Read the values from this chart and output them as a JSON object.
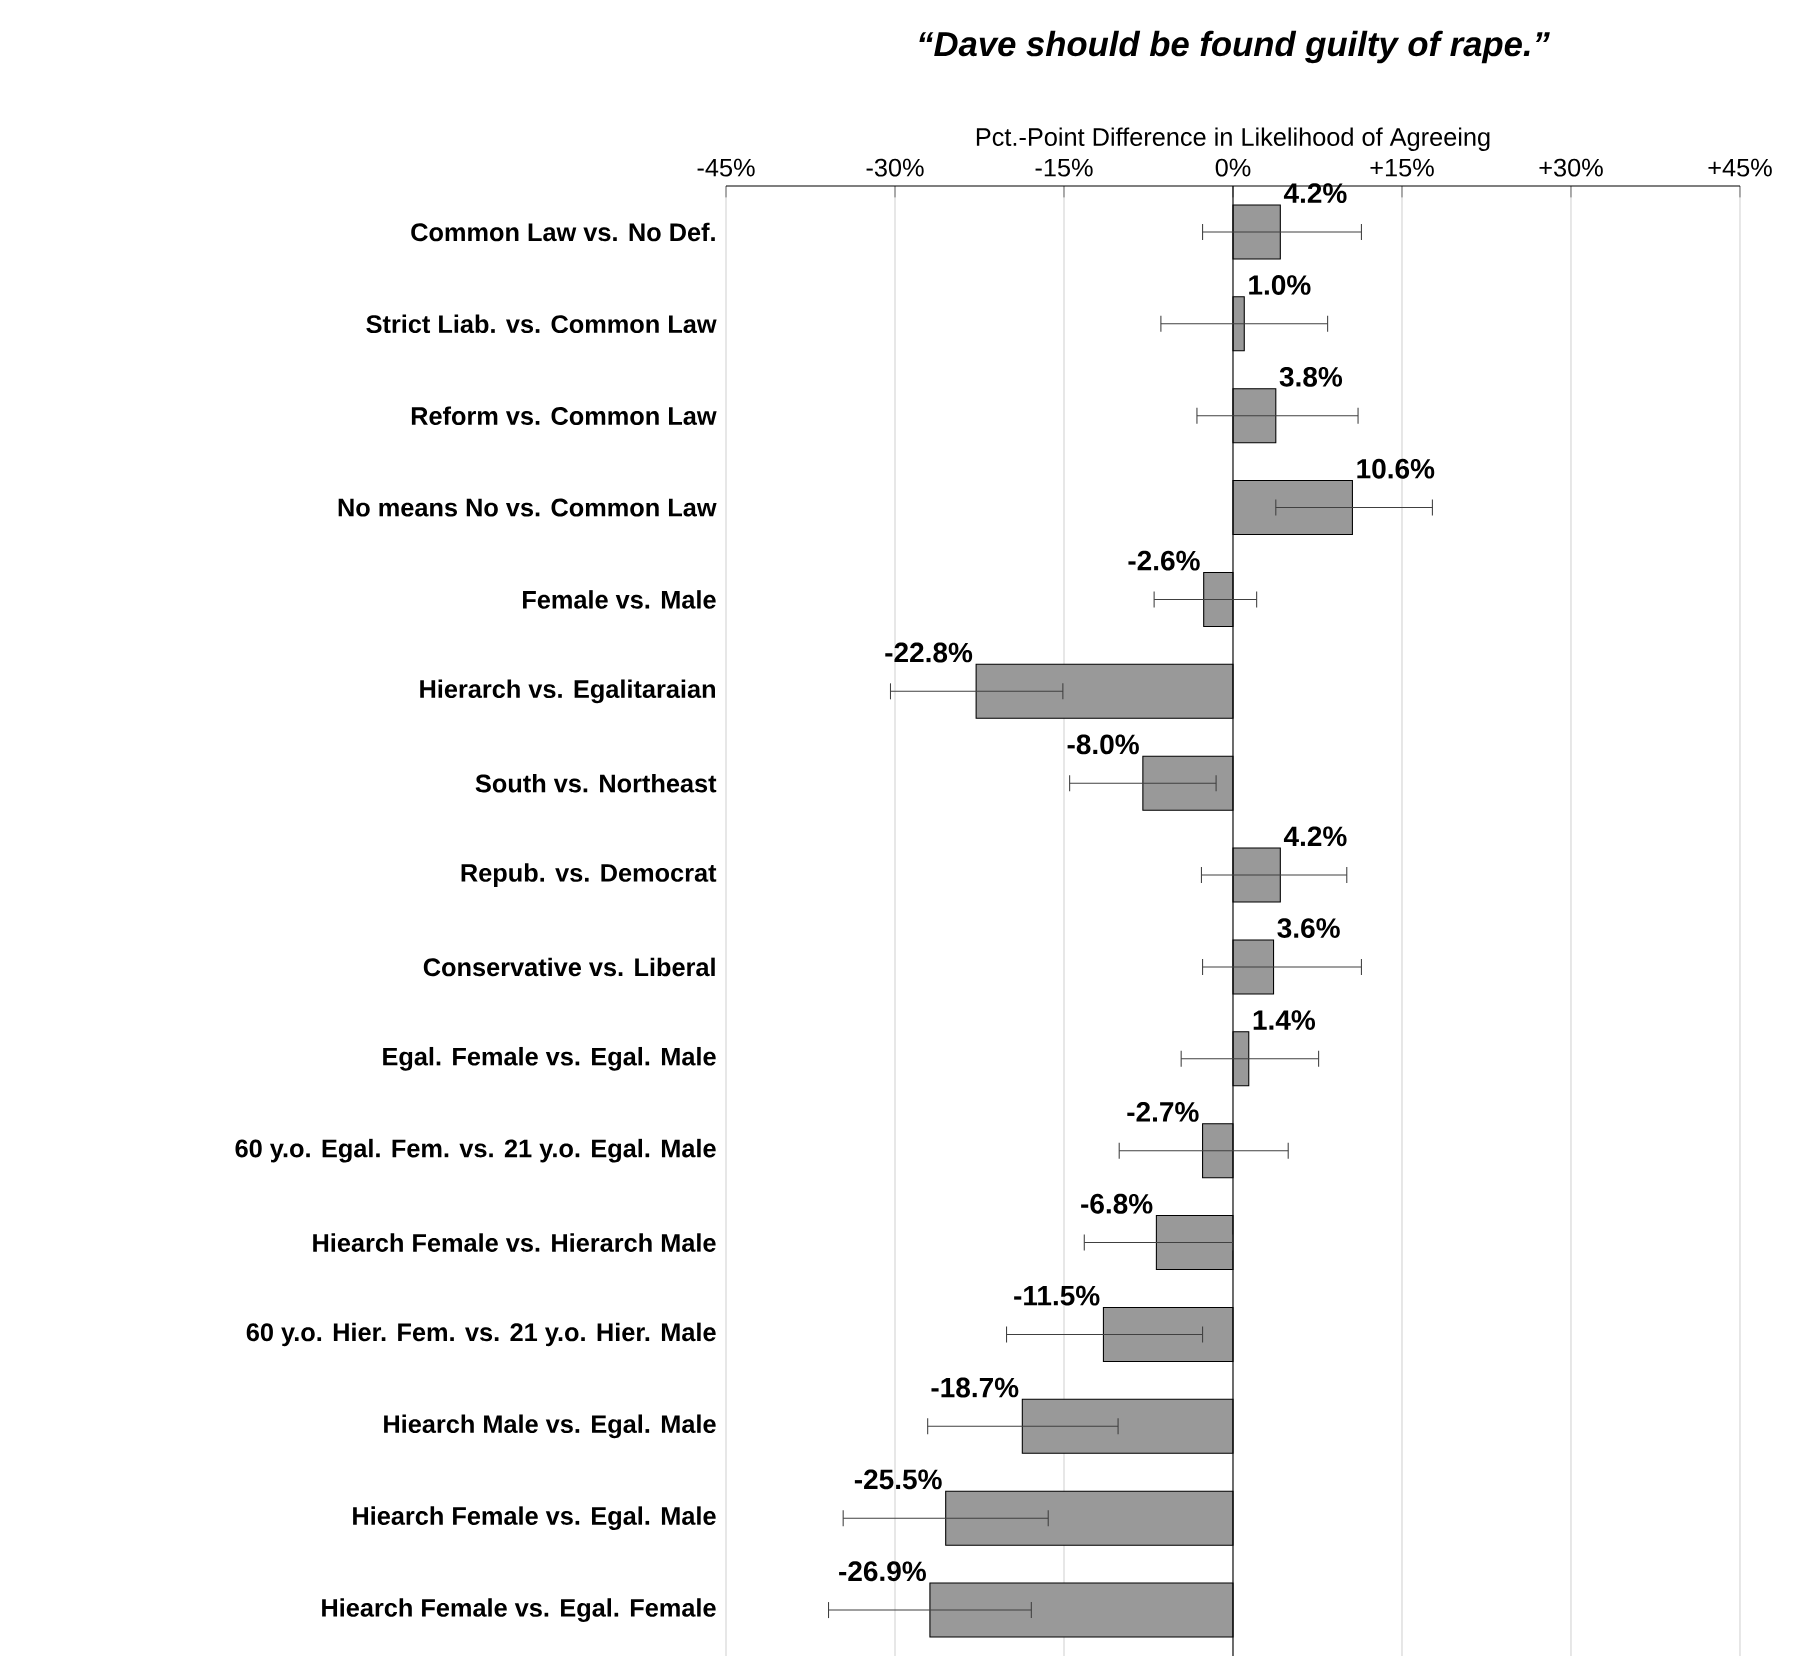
{
  "chart_data": {
    "type": "bar",
    "orientation": "horizontal",
    "title": "“Dave should be found guilty of rape.”",
    "xlabel": "Pct.-Point Difference in Likelihood of Agreeing",
    "categories": [
      "Common Law vs. No Def.",
      "Strict Liab. vs. Common Law",
      "Reform vs. Common Law",
      "No means No vs. Common Law",
      "Female vs. Male",
      "Hierarch vs. Egalitaraian",
      "South vs. Northeast",
      "Repub. vs. Democrat",
      "Conservative vs. Liberal",
      "Egal. Female vs. Egal. Male",
      "60 y.o. Egal. Fem. vs. 21 y.o. Egal. Male",
      "Hiearch Female vs. Hierarch Male",
      "60 y.o. Hier. Fem. vs. 21 y.o. Hier. Male",
      "Hiearch Male vs. Egal. Male",
      "Hiearch Female vs. Egal. Male",
      "Hiearch Female vs. Egal. Female"
    ],
    "values": [
      4.2,
      1.0,
      3.8,
      10.6,
      -2.6,
      -22.8,
      -8.0,
      4.2,
      3.6,
      1.4,
      -2.7,
      -6.8,
      -11.5,
      -18.7,
      -25.5,
      -26.9
    ],
    "value_labels": [
      "4.2%",
      "1.0%",
      "3.8%",
      "10.6%",
      "-2.6%",
      "-22.8%",
      "-8.0%",
      "4.2%",
      "3.6%",
      "1.4%",
      "-2.7%",
      "-6.8%",
      "-11.5%",
      "-18.7%",
      "-25.5%",
      "-26.9%"
    ],
    "errors": [
      [
        -2.7,
        11.4
      ],
      [
        -6.4,
        8.4
      ],
      [
        -3.2,
        11.1
      ],
      [
        3.8,
        17.7
      ],
      [
        -7.0,
        2.1
      ],
      [
        -30.4,
        -15.1
      ],
      [
        -14.5,
        -1.5
      ],
      [
        -2.8,
        10.1
      ],
      [
        -2.7,
        11.4
      ],
      [
        -4.6,
        7.6
      ],
      [
        -10.1,
        4.9
      ],
      [
        -13.2,
        0.0
      ],
      [
        -20.1,
        -2.7
      ],
      [
        -27.1,
        -10.2
      ],
      [
        -34.6,
        -16.4
      ],
      [
        -35.9,
        -17.9
      ]
    ],
    "color": "#999999",
    "xlim": [
      -45,
      45
    ],
    "xticks": [
      {
        "value": -45,
        "label": "-45%"
      },
      {
        "value": -30,
        "label": "-30%"
      },
      {
        "value": -15,
        "label": "-15%"
      },
      {
        "value": 0,
        "label": "0%"
      },
      {
        "value": 15,
        "label": "+15%"
      },
      {
        "value": 30,
        "label": "+30%"
      },
      {
        "value": 45,
        "label": "+45%"
      }
    ],
    "grid": "x"
  }
}
